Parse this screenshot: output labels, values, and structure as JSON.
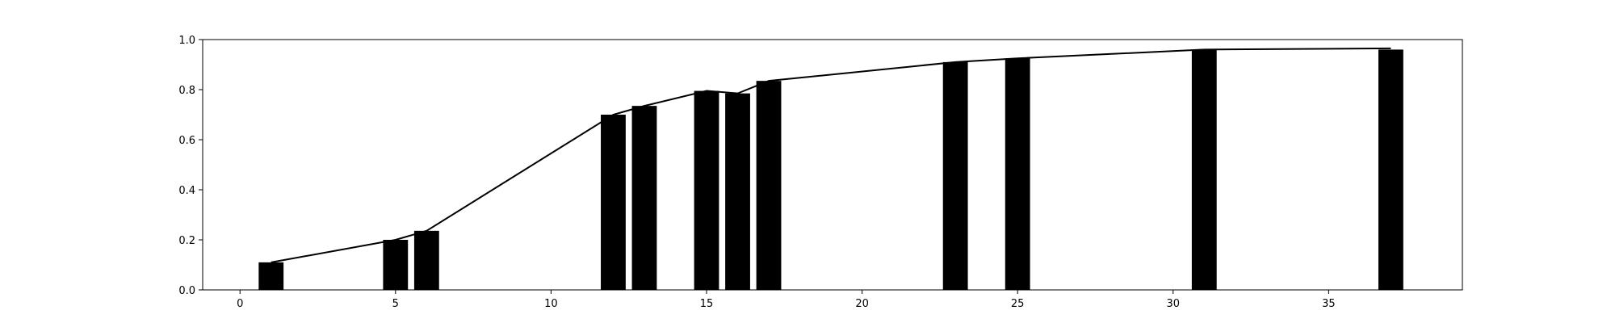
{
  "chart_data": {
    "type": "bar",
    "title": "",
    "xlabel": "",
    "ylabel": "",
    "xlim": [
      -1.2,
      39.3
    ],
    "ylim": [
      0,
      1.0
    ],
    "xticks": [
      0,
      5,
      10,
      15,
      20,
      25,
      30,
      35
    ],
    "yticks": [
      0.0,
      0.2,
      0.4,
      0.6,
      0.8,
      1.0
    ],
    "xtick_labels": [
      "0",
      "5",
      "10",
      "15",
      "20",
      "25",
      "30",
      "35"
    ],
    "ytick_labels": [
      "0.0",
      "0.2",
      "0.4",
      "0.6",
      "0.8",
      "1.0"
    ],
    "grid": false,
    "series": [
      {
        "type": "bar",
        "color": "#000000",
        "bar_width": 0.8,
        "x": [
          1,
          5,
          6,
          12,
          13,
          15,
          16,
          17,
          23,
          25,
          31,
          37
        ],
        "values": [
          0.11,
          0.2,
          0.236,
          0.7,
          0.735,
          0.795,
          0.785,
          0.835,
          0.91,
          0.925,
          0.96,
          0.96
        ]
      },
      {
        "type": "line",
        "color": "#000000",
        "x": [
          1,
          5,
          6,
          12,
          13,
          15,
          16,
          17,
          23,
          25,
          31,
          37
        ],
        "values": [
          0.11,
          0.2,
          0.236,
          0.7,
          0.735,
          0.795,
          0.785,
          0.835,
          0.91,
          0.925,
          0.96,
          0.965
        ]
      }
    ]
  }
}
